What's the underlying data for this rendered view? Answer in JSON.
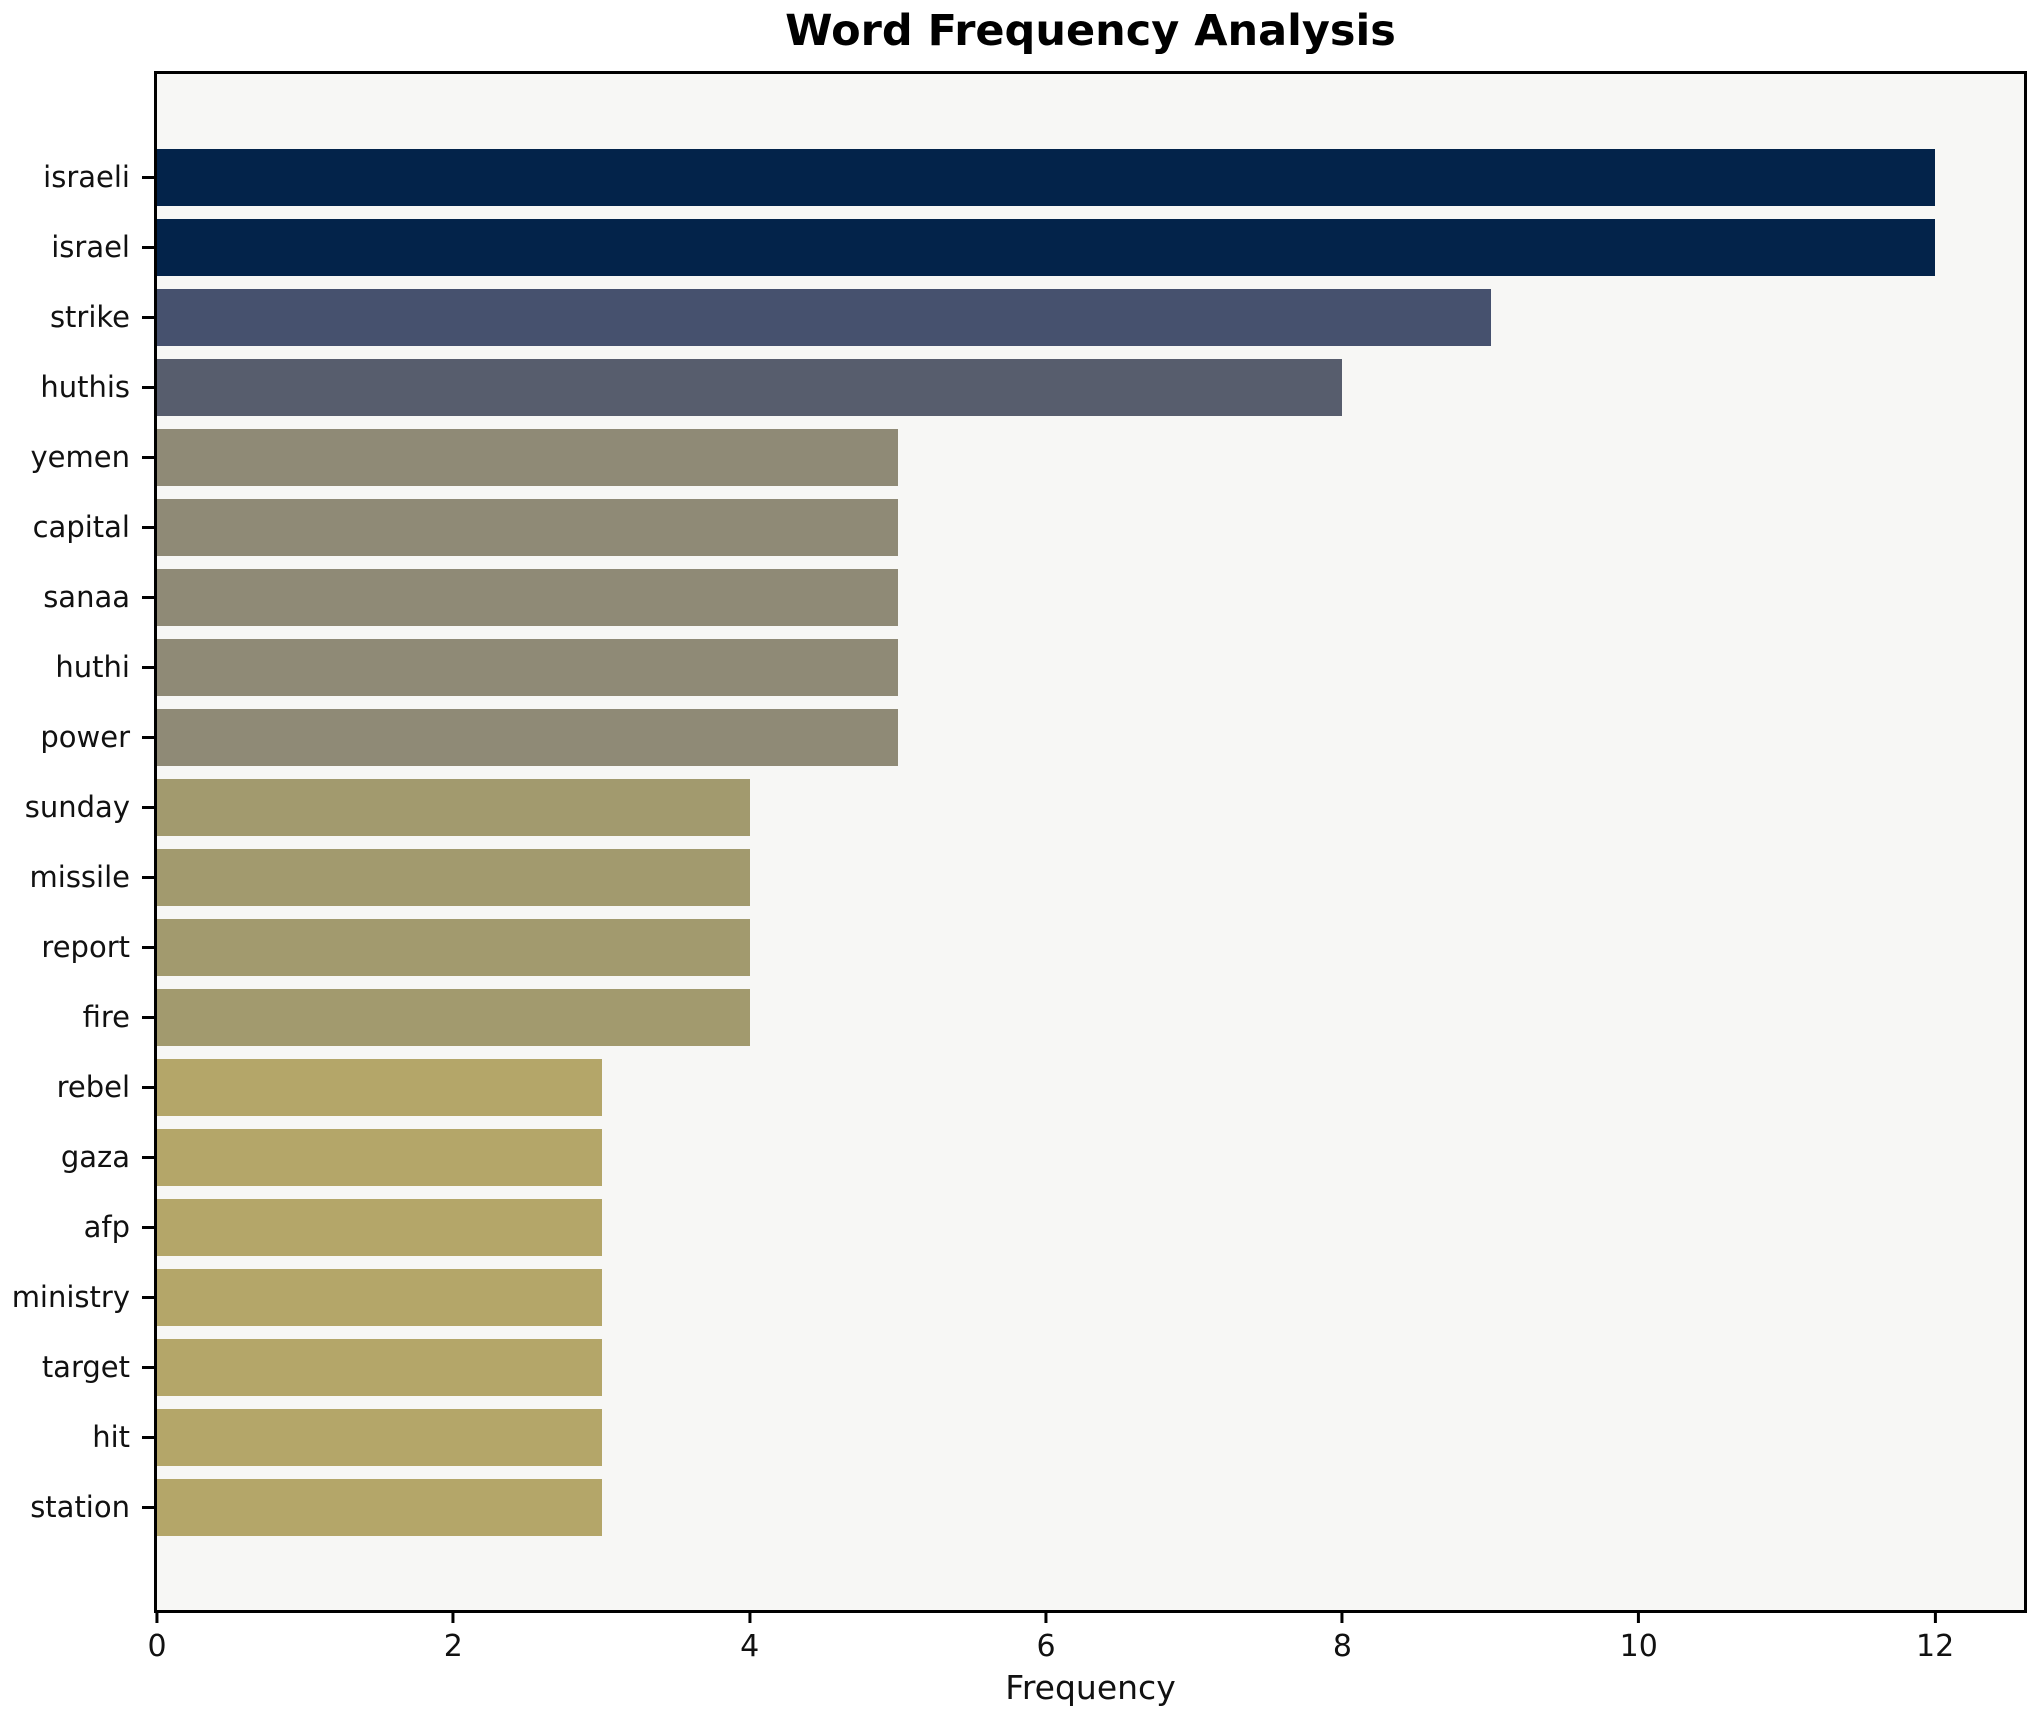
{
  "chart_data": {
    "type": "bar",
    "orientation": "horizontal",
    "title": "Word Frequency Analysis",
    "xlabel": "Frequency",
    "ylabel": "",
    "categories": [
      "israeli",
      "israel",
      "strike",
      "huthis",
      "yemen",
      "capital",
      "sanaa",
      "huthi",
      "power",
      "sunday",
      "missile",
      "report",
      "fire",
      "rebel",
      "gaza",
      "afp",
      "ministry",
      "target",
      "hit",
      "station"
    ],
    "values": [
      12,
      12,
      9,
      8,
      5,
      5,
      5,
      5,
      5,
      4,
      4,
      4,
      4,
      3,
      3,
      3,
      3,
      3,
      3,
      3
    ],
    "bar_colors": [
      "#03234a",
      "#03234a",
      "#46516e",
      "#575d6d",
      "#8f8a76",
      "#8f8a76",
      "#8f8a76",
      "#8f8a76",
      "#8f8a76",
      "#a29a6e",
      "#a29a6e",
      "#a29a6e",
      "#a29a6e",
      "#b4a669",
      "#b4a669",
      "#b4a669",
      "#b4a669",
      "#b4a669",
      "#b4a669",
      "#b4a669"
    ],
    "xlim": [
      0,
      12.6
    ],
    "x_ticks": [
      0,
      2,
      4,
      6,
      8,
      10,
      12
    ],
    "grid": false,
    "legend_position": "none",
    "plot_background": "#f7f7f5",
    "figure_background": "#ffffff",
    "spine_color": "#000000",
    "text_color": "#111111"
  }
}
